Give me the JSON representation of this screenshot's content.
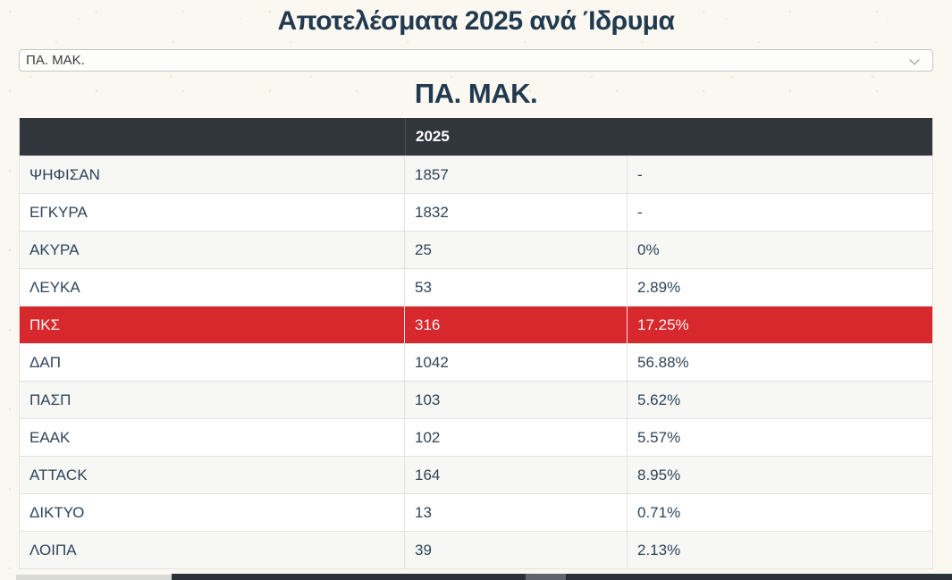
{
  "header": {
    "title": "Αποτελέσματα 2025 ανά Ίδρυμα"
  },
  "institution_select": {
    "value": "ΠΑ. ΜΑΚ."
  },
  "section": {
    "heading": "ΠΑ. ΜΑΚ."
  },
  "results_table": {
    "year_column_header": "2025",
    "rows": [
      {
        "label": "ΨΗΦΙΣΑΝ",
        "votes": "1857",
        "percent": "-",
        "highlight": false
      },
      {
        "label": "ΕΓΚΥΡΑ",
        "votes": "1832",
        "percent": "-",
        "highlight": false
      },
      {
        "label": "ΑΚΥΡΑ",
        "votes": "25",
        "percent": "0%",
        "highlight": false
      },
      {
        "label": "ΛΕΥΚΑ",
        "votes": "53",
        "percent": "2.89%",
        "highlight": false
      },
      {
        "label": "ΠΚΣ",
        "votes": "316",
        "percent": "17.25%",
        "highlight": true
      },
      {
        "label": "ΔΑΠ",
        "votes": "1042",
        "percent": "56.88%",
        "highlight": false
      },
      {
        "label": "ΠΑΣΠ",
        "votes": "103",
        "percent": "5.62%",
        "highlight": false
      },
      {
        "label": "ΕΑΑΚ",
        "votes": "102",
        "percent": "5.57%",
        "highlight": false
      },
      {
        "label": "ATTACK",
        "votes": "164",
        "percent": "8.95%",
        "highlight": false
      },
      {
        "label": "ΔΙΚΤΥΟ",
        "votes": "13",
        "percent": "0.71%",
        "highlight": false
      },
      {
        "label": "ΛΟΙΠΑ",
        "votes": "39",
        "percent": "2.13%",
        "highlight": false
      }
    ]
  },
  "colors": {
    "highlight_red": "#d7282e",
    "table_header_bg": "#31363d",
    "title_navy": "#213a4f",
    "cell_text": "#2e4458",
    "page_bg": "#faf8f1",
    "row_alt_bg": "#f7f7f5",
    "table_border": "#e2e2e0",
    "bottom_bar_dark": "#2b3138",
    "bottom_thumb_gray": "#5f656c",
    "bottom_thumb_light": "#d9d9d7"
  }
}
